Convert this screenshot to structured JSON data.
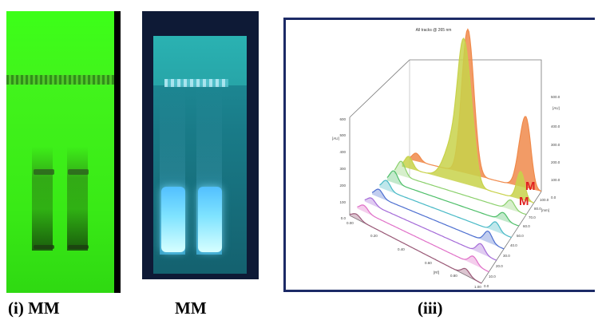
{
  "panels": {
    "i": {
      "caption": "(i) MM"
    },
    "ii": {
      "caption": "MM"
    },
    "iii": {
      "caption": "(iii)"
    }
  },
  "chromatogram": {
    "title": "All tracks @ 265 nm",
    "left_axis_unit": "[AU]",
    "right_axis_unit": "[AU]",
    "mm_axis_unit": "[mm]",
    "rf_axis_unit": "[Rf]",
    "left_ticks": [
      "600",
      "500",
      "400",
      "300",
      "200",
      "100",
      "0.0"
    ],
    "right_ticks": [
      "500.0",
      "400.0",
      "300.0",
      "200.0",
      "100.0",
      "0.0"
    ],
    "rf_ticks": [
      "0.00",
      "0.20",
      "0.40",
      "0.60",
      "0.80",
      "1.00"
    ],
    "mm_ticks": [
      "100.0",
      "80.0",
      "70.0",
      "60.0",
      "50.0",
      "40.0",
      "30.0",
      "20.0",
      "10.0",
      "0.0"
    ],
    "markers": [
      "M",
      "M"
    ],
    "track_colors": [
      "#f08a4b",
      "#c8d24a",
      "#8bd06c",
      "#4fbf6a",
      "#48b9c6",
      "#4d6fd0",
      "#a46ad8",
      "#e070c8",
      "#9b5a78"
    ]
  }
}
